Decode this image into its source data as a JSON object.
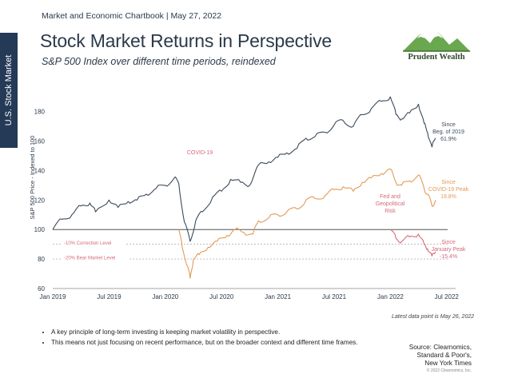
{
  "sidebar": {
    "label": "U.S. Stock Market"
  },
  "header": {
    "line": "Market and Economic Chartbook | May 27, 2022"
  },
  "title": "Stock Market Returns in Perspective",
  "subtitle": "S&P 500 Index over different time periods, reindexed",
  "logo": {
    "text": "Prudent Wealth",
    "icon": "mountain-logo-icon"
  },
  "chart_data": {
    "type": "line",
    "ylabel": "S&P 500 Price - Indexed to 100",
    "ylim": [
      60,
      195
    ],
    "yticks": [
      60,
      80,
      100,
      120,
      140,
      160,
      180
    ],
    "xticks": [
      {
        "label": "Jan 2019",
        "t": 2019.0
      },
      {
        "label": "Jul 2019",
        "t": 2019.5
      },
      {
        "label": "Jan 2020",
        "t": 2020.0
      },
      {
        "label": "Jul 2020",
        "t": 2020.5
      },
      {
        "label": "Jan 2021",
        "t": 2021.0
      },
      {
        "label": "Jul 2021",
        "t": 2021.5
      },
      {
        "label": "Jan 2022",
        "t": 2022.0
      },
      {
        "label": "Jul 2022",
        "t": 2022.5
      }
    ],
    "xlim": [
      2019.0,
      2022.58
    ],
    "reference_lines": [
      {
        "label": "",
        "value": 100,
        "color": "#555555"
      },
      {
        "label": "-10% Correction Level",
        "value": 90,
        "color": "#999999"
      },
      {
        "label": "-20% Bear Market Level",
        "value": 80,
        "color": "#999999"
      }
    ],
    "series": [
      {
        "name": "Since Beg. of 2019",
        "color": "#3b4a5c",
        "end_label": [
          "Since",
          "Beg. of 2019",
          "61.9%"
        ],
        "annotation": "",
        "points": [
          [
            2019.0,
            100
          ],
          [
            2019.08,
            107
          ],
          [
            2019.17,
            110
          ],
          [
            2019.25,
            116
          ],
          [
            2019.33,
            118
          ],
          [
            2019.38,
            112
          ],
          [
            2019.5,
            120
          ],
          [
            2019.58,
            115
          ],
          [
            2019.67,
            119
          ],
          [
            2019.75,
            120
          ],
          [
            2019.83,
            124
          ],
          [
            2019.92,
            128
          ],
          [
            2020.0,
            130
          ],
          [
            2020.08,
            135
          ],
          [
            2020.12,
            131
          ],
          [
            2020.17,
            105
          ],
          [
            2020.22,
            92
          ],
          [
            2020.27,
            106
          ],
          [
            2020.33,
            112
          ],
          [
            2020.42,
            122
          ],
          [
            2020.5,
            126
          ],
          [
            2020.58,
            134
          ],
          [
            2020.67,
            132
          ],
          [
            2020.75,
            130
          ],
          [
            2020.83,
            144
          ],
          [
            2020.92,
            146
          ],
          [
            2021.0,
            149
          ],
          [
            2021.08,
            152
          ],
          [
            2021.17,
            155
          ],
          [
            2021.25,
            162
          ],
          [
            2021.33,
            163
          ],
          [
            2021.42,
            166
          ],
          [
            2021.5,
            171
          ],
          [
            2021.58,
            174
          ],
          [
            2021.67,
            170
          ],
          [
            2021.75,
            178
          ],
          [
            2021.83,
            182
          ],
          [
            2021.92,
            187
          ],
          [
            2022.0,
            190
          ],
          [
            2022.05,
            178
          ],
          [
            2022.1,
            175
          ],
          [
            2022.17,
            179
          ],
          [
            2022.25,
            185
          ],
          [
            2022.3,
            172
          ],
          [
            2022.33,
            166
          ],
          [
            2022.37,
            156
          ],
          [
            2022.4,
            162
          ]
        ]
      },
      {
        "name": "Since COVID-19 Peak",
        "color": "#e29a57",
        "end_label": [
          "Since",
          "COVID-19 Peak",
          "19.8%"
        ],
        "annotation": "COVID-19",
        "points": [
          [
            2020.12,
            100
          ],
          [
            2020.15,
            88
          ],
          [
            2020.2,
            75
          ],
          [
            2020.22,
            67
          ],
          [
            2020.25,
            80
          ],
          [
            2020.3,
            83
          ],
          [
            2020.38,
            88
          ],
          [
            2020.46,
            92
          ],
          [
            2020.55,
            96
          ],
          [
            2020.62,
            100
          ],
          [
            2020.7,
            98
          ],
          [
            2020.78,
            97
          ],
          [
            2020.83,
            106
          ],
          [
            2020.92,
            108
          ],
          [
            2021.0,
            110
          ],
          [
            2021.08,
            112
          ],
          [
            2021.17,
            114
          ],
          [
            2021.25,
            120
          ],
          [
            2021.33,
            121
          ],
          [
            2021.42,
            123
          ],
          [
            2021.5,
            127
          ],
          [
            2021.58,
            129
          ],
          [
            2021.67,
            126
          ],
          [
            2021.75,
            132
          ],
          [
            2021.83,
            135
          ],
          [
            2021.92,
            138
          ],
          [
            2022.0,
            141
          ],
          [
            2022.05,
            132
          ],
          [
            2022.1,
            130
          ],
          [
            2022.17,
            133
          ],
          [
            2022.25,
            137
          ],
          [
            2022.3,
            128
          ],
          [
            2022.33,
            124
          ],
          [
            2022.37,
            116
          ],
          [
            2022.4,
            120
          ]
        ]
      },
      {
        "name": "Since January Peak",
        "color": "#d66a78",
        "end_label": [
          "Since",
          "January Peak",
          "-15.4%"
        ],
        "annotation": "Fed and Geopolitical Risk",
        "points": [
          [
            2022.0,
            100
          ],
          [
            2022.05,
            94
          ],
          [
            2022.1,
            92
          ],
          [
            2022.17,
            95
          ],
          [
            2022.25,
            97
          ],
          [
            2022.3,
            90
          ],
          [
            2022.33,
            87
          ],
          [
            2022.37,
            82
          ],
          [
            2022.4,
            85
          ]
        ]
      }
    ]
  },
  "note": "Latest data point is May 26, 2022",
  "bullets": [
    "A key principle of long-term investing is keeping market volatility in perspective.",
    "This means not just focusing on recent performance, but on the broader context and different time frames."
  ],
  "source": [
    "Source: Clearnomics,",
    "Standard & Poor's,",
    "New York Times"
  ],
  "copyright": "© 2022 Clearnomics, Inc."
}
